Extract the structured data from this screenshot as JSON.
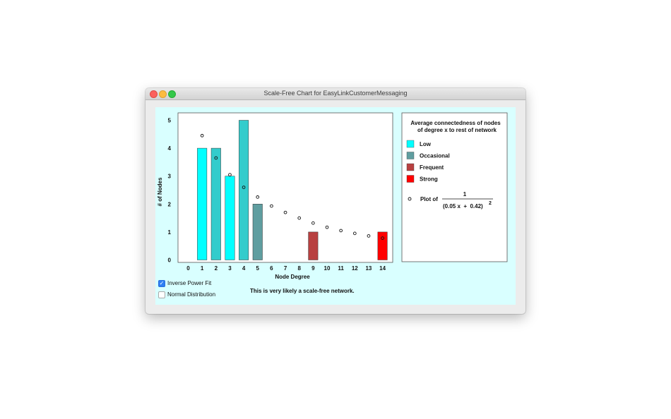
{
  "window": {
    "title": "Scale-Free Chart for EasyLinkCustomerMessaging"
  },
  "chart_data": {
    "type": "bar",
    "xlabel": "Node Degree",
    "ylabel": "# of Nodes",
    "x_ticks": [
      "0",
      "1",
      "2",
      "3",
      "4",
      "5",
      "6",
      "7",
      "8",
      "9",
      "10",
      "11",
      "12",
      "13",
      "14"
    ],
    "y_ticks": [
      "0",
      "1",
      "2",
      "3",
      "4",
      "5"
    ],
    "xlim": [
      0,
      14
    ],
    "ylim": [
      0,
      5
    ],
    "bars": [
      {
        "x": 1,
        "value": 4,
        "category": "Low"
      },
      {
        "x": 2,
        "value": 4,
        "category": "Occasional"
      },
      {
        "x": 3,
        "value": 3,
        "category": "Low"
      },
      {
        "x": 4,
        "value": 5,
        "category": "Occasional"
      },
      {
        "x": 5,
        "value": 2,
        "category": "Occasional-dark"
      },
      {
        "x": 9,
        "value": 1,
        "category": "Frequent"
      },
      {
        "x": 14,
        "value": 1,
        "category": "Strong"
      }
    ],
    "fit_points": [
      {
        "x": 1,
        "y": 4.45
      },
      {
        "x": 2,
        "y": 3.65
      },
      {
        "x": 3,
        "y": 3.05
      },
      {
        "x": 4,
        "y": 2.6
      },
      {
        "x": 5,
        "y": 2.25
      },
      {
        "x": 6,
        "y": 1.93
      },
      {
        "x": 7,
        "y": 1.7
      },
      {
        "x": 8,
        "y": 1.5
      },
      {
        "x": 9,
        "y": 1.32
      },
      {
        "x": 10,
        "y": 1.17
      },
      {
        "x": 11,
        "y": 1.05
      },
      {
        "x": 12,
        "y": 0.95
      },
      {
        "x": 13,
        "y": 0.86
      },
      {
        "x": 14,
        "y": 0.78
      }
    ],
    "colors": {
      "Low": "#00ffff",
      "Occasional": "#33cccc",
      "Occasional-dark": "#5f9ea0",
      "Frequent": "#b84040",
      "Strong": "#ff0000"
    }
  },
  "legend": {
    "title_line1": "Average connectedness of nodes",
    "title_line2": "of degree x to rest of network",
    "items": [
      {
        "label": "Low",
        "color": "#00ffff"
      },
      {
        "label": "Occasional",
        "color": "#5f9ea0"
      },
      {
        "label": "Frequent",
        "color": "#b84040"
      },
      {
        "label": "Strong",
        "color": "#ff0000"
      }
    ],
    "plot_label": "Plot of",
    "formula_numerator": "1",
    "formula_denominator": "(0.05 x  +  0.42)",
    "formula_exponent": "2"
  },
  "controls": {
    "inverse_power_fit": {
      "label": "Inverse Power Fit",
      "checked": true
    },
    "normal_distribution": {
      "label": "Normal Distribution",
      "checked": false
    }
  },
  "message": "This is very likely a scale-free network."
}
